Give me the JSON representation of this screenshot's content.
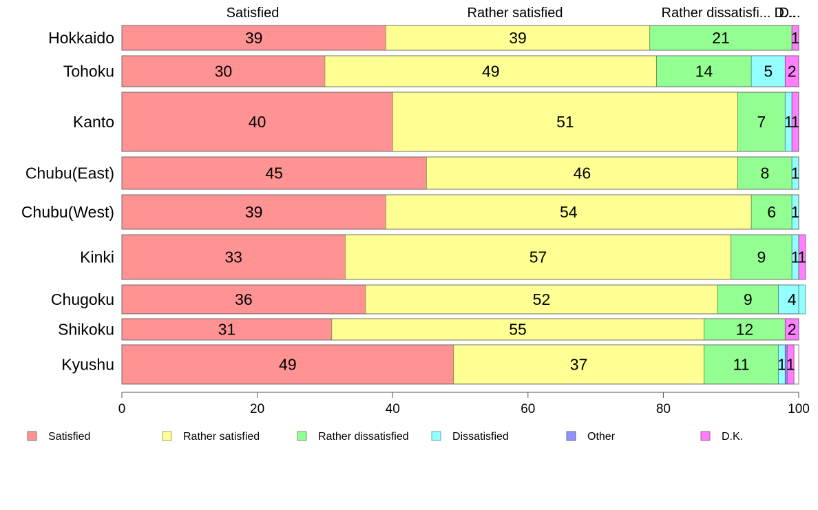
{
  "chart_data": {
    "type": "bar",
    "orientation": "horizontal",
    "stacked": true,
    "categories": [
      "Hokkaido",
      "Tohoku",
      "Kanto",
      "Chubu(East)",
      "Chubu(West)",
      "Kinki",
      "Chugoku",
      "Shikoku",
      "Kyushu"
    ],
    "series": [
      {
        "name": "Satisfied",
        "color": "#ff9393",
        "values": [
          39,
          30,
          40,
          45,
          39,
          33,
          36,
          31,
          49
        ]
      },
      {
        "name": "Rather satisfied",
        "color": "#ffff93",
        "values": [
          39,
          49,
          51,
          46,
          54,
          57,
          52,
          55,
          37
        ]
      },
      {
        "name": "Rather dissatisfied",
        "color": "#93ff93",
        "values": [
          21,
          14,
          7,
          8,
          6,
          9,
          9,
          12,
          11
        ]
      },
      {
        "name": "Dissatisfied",
        "color": "#93ffff",
        "values": [
          0,
          5,
          1,
          1,
          1,
          1,
          4,
          0,
          1
        ]
      },
      {
        "name": "Other",
        "color": "#9393ff",
        "values": [
          0,
          0,
          0,
          0,
          0,
          0,
          0,
          0,
          0.3
        ]
      },
      {
        "name": "D.K.",
        "color": "#ff7fff",
        "values": [
          1,
          2,
          1,
          0,
          0,
          1,
          0,
          2,
          1
        ]
      }
    ],
    "top_labels": [
      "Satisfied",
      "Rather satisfied",
      "Rather dissatisfi...",
      "D...",
      "D..."
    ],
    "xlim": [
      0,
      100
    ],
    "xticks": [
      "0",
      "20",
      "40",
      "60",
      "80",
      "100"
    ],
    "legend_position": "bottom",
    "grid": false
  }
}
